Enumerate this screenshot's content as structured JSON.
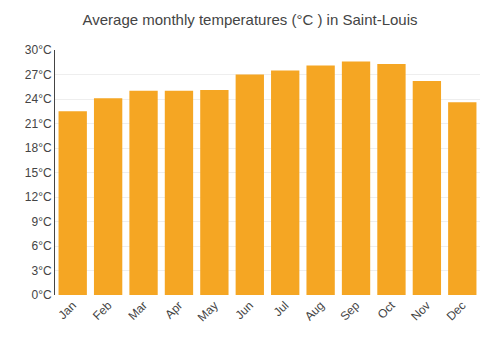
{
  "chart_data": {
    "type": "bar",
    "title": "Average monthly temperatures (°C ) in Saint-Louis",
    "categories": [
      "Jan",
      "Feb",
      "Mar",
      "Apr",
      "May",
      "Jun",
      "Jul",
      "Aug",
      "Sep",
      "Oct",
      "Nov",
      "Dec"
    ],
    "values": [
      22.5,
      24.1,
      25.0,
      25.0,
      25.1,
      27.0,
      27.5,
      28.1,
      28.6,
      28.3,
      26.2,
      23.6
    ],
    "color": "#F5A623",
    "ylim": [
      0,
      30
    ],
    "yticks": [
      {
        "value": 0,
        "label": "0°C"
      },
      {
        "value": 3,
        "label": "3°C"
      },
      {
        "value": 6,
        "label": "6°C"
      },
      {
        "value": 9,
        "label": "9°C"
      },
      {
        "value": 12,
        "label": "12°C"
      },
      {
        "value": 15,
        "label": "15°C"
      },
      {
        "value": 18,
        "label": "18°C"
      },
      {
        "value": 21,
        "label": "21°C"
      },
      {
        "value": 24,
        "label": "24°C"
      },
      {
        "value": 27,
        "label": "27°C"
      },
      {
        "value": 30,
        "label": "30°C"
      }
    ],
    "grid": true
  }
}
